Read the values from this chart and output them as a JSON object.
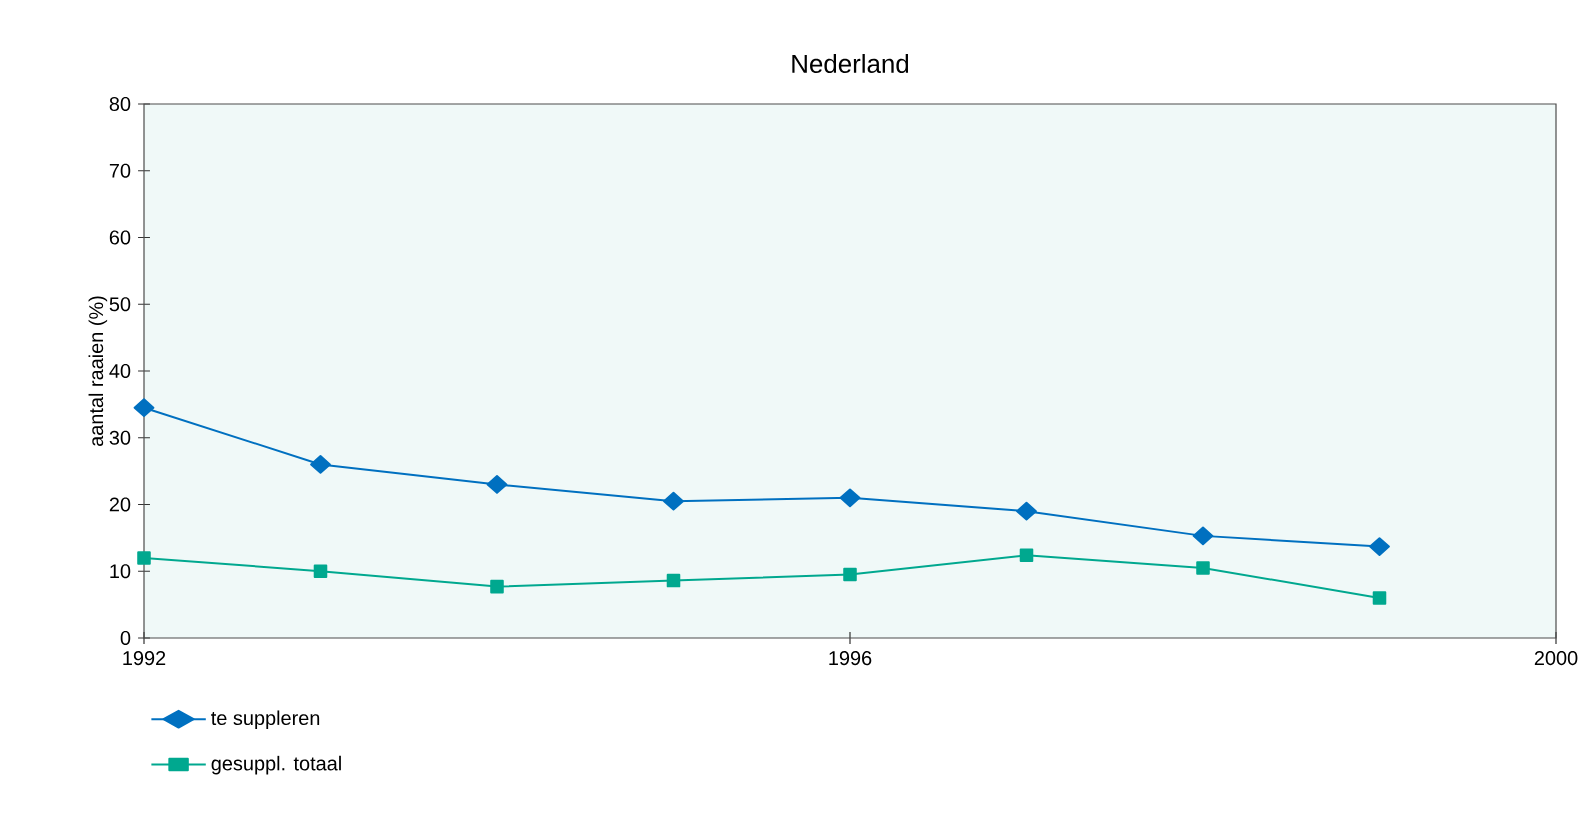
{
  "chart_data": {
    "type": "line",
    "title": "Nederland",
    "ylabel": "aantal raaien (%)",
    "x": [
      1992,
      1993,
      1994,
      1995,
      1996,
      1997,
      1998,
      1999
    ],
    "xlim": [
      1992,
      2000
    ],
    "xticks": [
      1992,
      1996,
      2000
    ],
    "ylim": [
      0,
      80
    ],
    "yticks": [
      0,
      10,
      20,
      30,
      40,
      50,
      60,
      70,
      80
    ],
    "series": [
      {
        "name": "te suppleren",
        "color": "#0070c0",
        "marker": "diamond",
        "values": [
          34.5,
          26,
          23,
          20.5,
          21,
          19,
          15.3,
          13.7
        ]
      },
      {
        "name": "gesuppl. totaal",
        "color": "#00a88f",
        "marker": "square",
        "values": [
          12,
          10,
          7.7,
          8.6,
          9.5,
          12.4,
          10.5,
          6
        ]
      }
    ],
    "legend": "bottom",
    "grid": false
  }
}
